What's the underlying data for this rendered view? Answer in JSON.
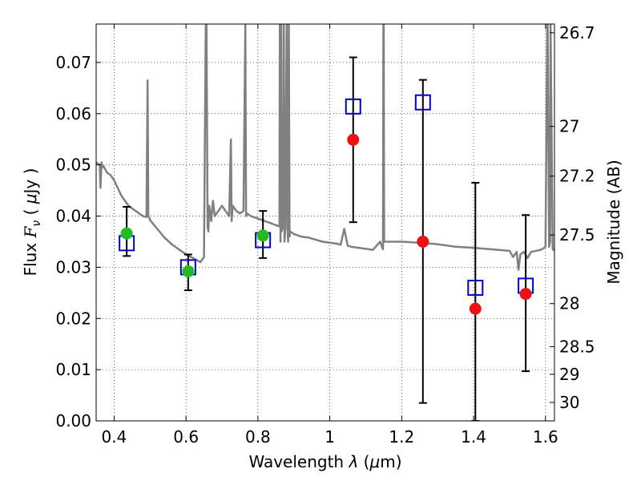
{
  "chart_data": {
    "type": "scatter",
    "xlabel": "Wavelength  λ (μm)",
    "ylabel": "Flux  F_ν  ( μJy )",
    "ylabel_parts": {
      "pre": "Flux  ",
      "var": "F",
      "sub": "ν",
      "mid": "  ( ",
      "unit": "μ",
      "post": "Jy )"
    },
    "xlabel_parts": {
      "pre": "Wavelength  ",
      "var": "λ",
      "mid": " (",
      "unit": "μ",
      "post": "m)"
    },
    "y2label": "Magnitude (AB)",
    "xlim": [
      0.35,
      1.625
    ],
    "ylim": [
      0.0,
      0.0775
    ],
    "grid": true,
    "x_ticks": [
      0.4,
      0.6,
      0.8,
      1.0,
      1.2,
      1.4,
      1.6
    ],
    "x_tick_labels": [
      "0.4",
      "0.6",
      "0.8",
      "1",
      "1.2",
      "1.4",
      "1.6"
    ],
    "y_ticks": [
      0.0,
      0.01,
      0.02,
      0.03,
      0.04,
      0.05,
      0.06,
      0.07
    ],
    "y_tick_labels": [
      "0.00",
      "0.01",
      "0.02",
      "0.03",
      "0.04",
      "0.05",
      "0.06",
      "0.07"
    ],
    "mag_ticks": [
      {
        "label": "26.7",
        "flux": 0.0758
      },
      {
        "label": "27",
        "flux": 0.0575
      },
      {
        "label": "27.2",
        "flux": 0.0478
      },
      {
        "label": "27.5",
        "flux": 0.0363
      },
      {
        "label": "28",
        "flux": 0.0229
      },
      {
        "label": "28.5",
        "flux": 0.0145
      },
      {
        "label": "29",
        "flux": 0.0091
      },
      {
        "label": "30",
        "flux": 0.0036
      }
    ],
    "series": [
      {
        "marker": "square",
        "color": "#0000cc",
        "x": [
          0.435,
          0.606,
          0.814,
          1.065,
          1.259,
          1.405,
          1.545
        ],
        "y": [
          0.0347,
          0.03,
          0.0353,
          0.0614,
          0.0622,
          0.026,
          0.0264
        ],
        "err_lo": [
          0.0322,
          0.0255,
          0.0318,
          0.0388,
          0.0035,
          0.0,
          0.0097
        ],
        "err_hi": [
          0.0418,
          0.0325,
          0.041,
          0.071,
          0.0666,
          0.0465,
          0.0402
        ]
      },
      {
        "marker": "circle",
        "color": "#22bb22",
        "x": [
          0.435,
          0.606,
          0.814
        ],
        "y": [
          0.0366,
          0.0292,
          0.0362
        ]
      },
      {
        "marker": "circle",
        "color": "#ee1111",
        "x": [
          1.065,
          1.259,
          1.405,
          1.545
        ],
        "y": [
          0.0549,
          0.035,
          0.0219,
          0.0248
        ]
      },
      {
        "marker": "line",
        "color": "#808080",
        "x": [
          0.35,
          0.36,
          0.362,
          0.365,
          0.367,
          0.37,
          0.38,
          0.39,
          0.4,
          0.41,
          0.42,
          0.43,
          0.44,
          0.46,
          0.48,
          0.49,
          0.493,
          0.495,
          0.497,
          0.5,
          0.52,
          0.54,
          0.56,
          0.58,
          0.6,
          0.62,
          0.64,
          0.65,
          0.655,
          0.657,
          0.66,
          0.662,
          0.665,
          0.67,
          0.675,
          0.68,
          0.69,
          0.7,
          0.71,
          0.72,
          0.725,
          0.727,
          0.73,
          0.74,
          0.75,
          0.76,
          0.765,
          0.767,
          0.77,
          0.78,
          0.8,
          0.82,
          0.84,
          0.85,
          0.86,
          0.861,
          0.863,
          0.865,
          0.866,
          0.87,
          0.872,
          0.874,
          0.876,
          0.88,
          0.882,
          0.884,
          0.886,
          0.888,
          0.89,
          0.9,
          0.92,
          0.94,
          0.96,
          0.98,
          1.0,
          1.02,
          1.03,
          1.04,
          1.05,
          1.06,
          1.08,
          1.1,
          1.12,
          1.14,
          1.148,
          1.149,
          1.15,
          1.151,
          1.2,
          1.25,
          1.3,
          1.35,
          1.4,
          1.45,
          1.5,
          1.51,
          1.52,
          1.525,
          1.53,
          1.54,
          1.55,
          1.56,
          1.58,
          1.59,
          1.6,
          1.605,
          1.606,
          1.61,
          1.613,
          1.614,
          1.62,
          1.625
        ],
        "y": [
          0.0505,
          0.05,
          0.0455,
          0.0505,
          0.0495,
          0.0498,
          0.0485,
          0.048,
          0.047,
          0.0455,
          0.044,
          0.043,
          0.042,
          0.041,
          0.04,
          0.0398,
          0.0665,
          0.04,
          0.0398,
          0.0392,
          0.0375,
          0.0358,
          0.0345,
          0.0335,
          0.0325,
          0.0318,
          0.031,
          0.032,
          0.0775,
          0.0775,
          0.038,
          0.037,
          0.042,
          0.039,
          0.043,
          0.04,
          0.041,
          0.042,
          0.041,
          0.04,
          0.055,
          0.039,
          0.042,
          0.041,
          0.0405,
          0.041,
          0.0775,
          0.04,
          0.0405,
          0.04,
          0.0395,
          0.039,
          0.0385,
          0.0382,
          0.038,
          0.0775,
          0.035,
          0.0775,
          0.037,
          0.038,
          0.0775,
          0.035,
          0.0375,
          0.0775,
          0.038,
          0.035,
          0.0775,
          0.036,
          0.037,
          0.0365,
          0.036,
          0.0358,
          0.0354,
          0.035,
          0.0348,
          0.0346,
          0.0344,
          0.0375,
          0.0342,
          0.034,
          0.0338,
          0.0336,
          0.0334,
          0.035,
          0.0335,
          0.0775,
          0.0775,
          0.035,
          0.035,
          0.0348,
          0.0345,
          0.034,
          0.0338,
          0.0335,
          0.0332,
          0.032,
          0.033,
          0.0295,
          0.0325,
          0.033,
          0.0318,
          0.033,
          0.0333,
          0.0335,
          0.034,
          0.0775,
          0.0775,
          0.034,
          0.035,
          0.0775,
          0.0335,
          0.0333
        ]
      }
    ]
  }
}
